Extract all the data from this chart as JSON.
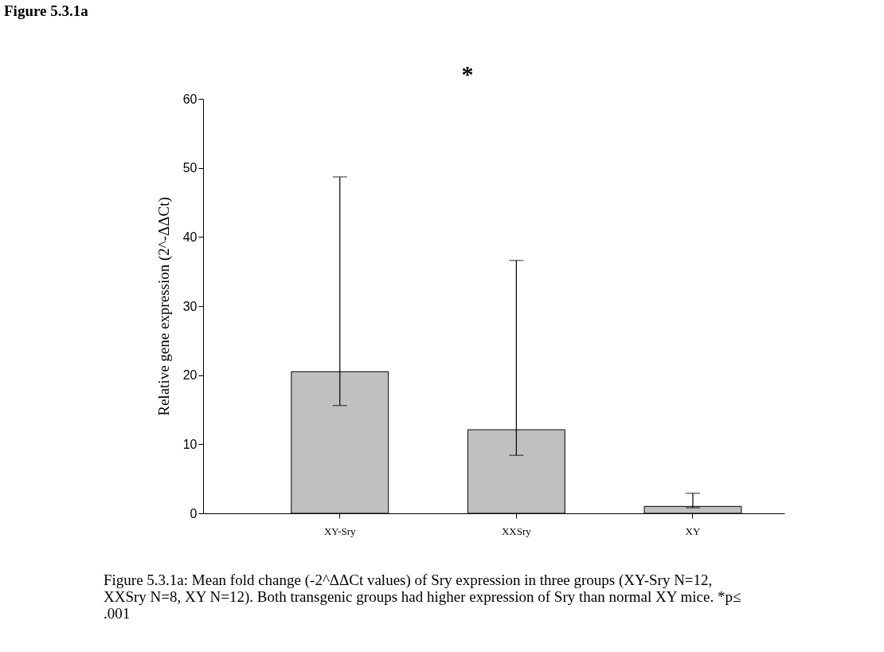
{
  "chart_data": {
    "type": "bar",
    "title": "Figure 5.3.1a",
    "ylabel": "Relative gene expression (2^-ΔΔCt)",
    "categories": [
      "XY-Sry",
      "XXSry",
      "XY"
    ],
    "values": [
      20.5,
      12.1,
      1.0
    ],
    "errors": [
      [
        15.6,
        48.7
      ],
      [
        8.4,
        36.6
      ],
      [
        0.8,
        2.9
      ]
    ],
    "color": "#c0c0c0",
    "ylim": [
      0,
      60
    ],
    "yticks": [
      0,
      10,
      20,
      30,
      40,
      50,
      60
    ],
    "grid": false,
    "annotations": [
      "*",
      "Figure 5.3.1a: Mean fold change (-2^ΔΔCt values) of Sry expression in three groups (XY-Sry N=12, XXSry N=8, XY N=12). Both transgenic groups had higher expression of Sry than normal XY mice. *p≤ .001"
    ]
  }
}
